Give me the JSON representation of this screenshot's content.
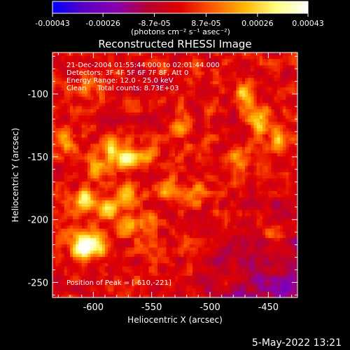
{
  "chart_data": {
    "type": "heatmap",
    "title": "Reconstructed RHESSI Image",
    "xlabel": "Heliocentric X (arcsec)",
    "ylabel": "Heliocentric Y (arcsec)",
    "xlim": [
      -635,
      -425
    ],
    "ylim": [
      -262,
      -67
    ],
    "x_ticks": [
      -600,
      -550,
      -500,
      -450
    ],
    "x_tick_labels": [
      "-600",
      "-550",
      "-500",
      "-450"
    ],
    "y_ticks": [
      -100,
      -150,
      -200,
      -250
    ],
    "y_tick_labels": [
      "-100",
      "-150",
      "-200",
      "-250"
    ],
    "colorbar": {
      "range": [
        -0.00043,
        0.00043
      ],
      "ticks": [
        -0.00043,
        -0.00026,
        -8.7e-05,
        8.7e-05,
        0.00026,
        0.00043
      ],
      "tick_labels": [
        "-0.00043",
        "-0.00026",
        "-8.7e-05",
        "8.7e-05",
        "0.00026",
        "0.00043"
      ],
      "units_label": "(photons cm⁻² s⁻¹ asec⁻²)",
      "colormap": [
        "#0000ff",
        "#5a00c0",
        "#8a00b0",
        "#b80030",
        "#e00000",
        "#ff5a00",
        "#ffb400",
        "#ffff80",
        "#ffffff"
      ]
    },
    "annotations": [
      "21-Dec-2004 01:55:44.000 to 02:01:44.000",
      "Detectors: 3F 4F 5F 6F 7F 8F, Att 0",
      "Energy Range: 12.0 - 25.0 keV",
      "Clean     Total counts: 8.73E+03"
    ],
    "peak_label": "Position of Peak = [-610,-221]",
    "peak": [
      -610,
      -221
    ],
    "sources": [
      {
        "x": -610,
        "y": -221,
        "amp": 0.00043
      },
      {
        "x": -596,
        "y": -219,
        "amp": 0.0003
      },
      {
        "x": -571,
        "y": -152,
        "amp": 0.0004
      },
      {
        "x": -585,
        "y": -143,
        "amp": 0.00025
      },
      {
        "x": -608,
        "y": -185,
        "amp": 0.00034
      },
      {
        "x": -587,
        "y": -190,
        "amp": 0.0003
      },
      {
        "x": -570,
        "y": -180,
        "amp": 0.00024
      },
      {
        "x": -570,
        "y": -205,
        "amp": 0.00022
      },
      {
        "x": -555,
        "y": -200,
        "amp": 0.00018
      },
      {
        "x": -625,
        "y": -135,
        "amp": 0.00022
      },
      {
        "x": -598,
        "y": -158,
        "amp": 0.0002
      },
      {
        "x": -550,
        "y": -148,
        "amp": 0.00016
      },
      {
        "x": -525,
        "y": -127,
        "amp": 0.0002
      },
      {
        "x": -535,
        "y": -176,
        "amp": 0.00018
      },
      {
        "x": -520,
        "y": -218,
        "amp": 0.00016
      },
      {
        "x": -458,
        "y": -120,
        "amp": 0.0003
      },
      {
        "x": -470,
        "y": -100,
        "amp": 0.00026
      },
      {
        "x": -440,
        "y": -137,
        "amp": 0.00024
      },
      {
        "x": -445,
        "y": -210,
        "amp": 0.00024
      },
      {
        "x": -475,
        "y": -150,
        "amp": 0.00018
      },
      {
        "x": -512,
        "y": -178,
        "amp": 0.00015
      },
      {
        "x": -603,
        "y": -95,
        "amp": 0.00014
      }
    ],
    "noise_amplitude": 0.00011
  },
  "footer": {
    "date_stamp": "5-May-2022 13:21"
  }
}
